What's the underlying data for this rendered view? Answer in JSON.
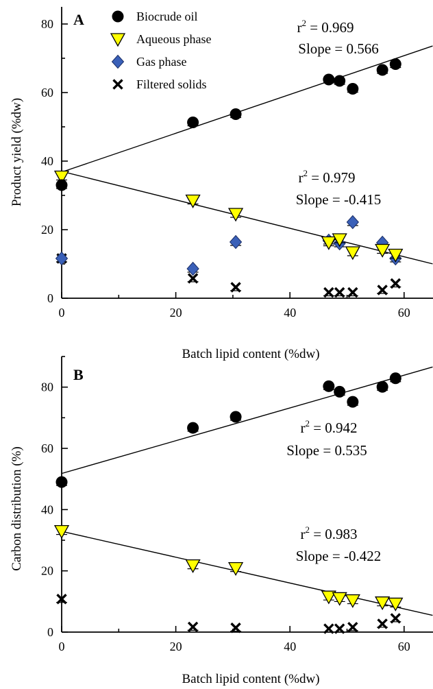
{
  "colors": {
    "biocrude": "#000000",
    "aqueous": "#ffff00",
    "gas": "#3a60b8",
    "solids": "#000000",
    "axis": "#000000"
  },
  "legend": {
    "items": [
      {
        "key": "biocrude",
        "label": "Biocrude oil",
        "marker": "filled-circle"
      },
      {
        "key": "aqueous",
        "label": "Aqueous phase",
        "marker": "down-triangle"
      },
      {
        "key": "gas",
        "label": "Gas phase",
        "marker": "diamond"
      },
      {
        "key": "solids",
        "label": "Filtered solids",
        "marker": "x-cross"
      }
    ]
  },
  "chart_data": [
    {
      "panel": "A",
      "type": "scatter",
      "xlabel": "Batch lipid content (%dw)",
      "ylabel": "Product yield (%dw)",
      "xlim": [
        0,
        65
      ],
      "ylim": [
        0,
        85
      ],
      "xticks": [
        0,
        20,
        40,
        60
      ],
      "yticks": [
        0,
        20,
        40,
        60,
        80
      ],
      "legend_position": "top-left",
      "series": [
        {
          "name": "Biocrude oil",
          "key": "biocrude",
          "x": [
            0,
            23,
            30.5,
            46.8,
            48.7,
            51,
            56.2,
            58.5
          ],
          "y": [
            33,
            51.3,
            53.7,
            63.8,
            63.4,
            61.1,
            66.6,
            68.3
          ]
        },
        {
          "name": "Aqueous phase",
          "key": "aqueous",
          "x": [
            0,
            23,
            30.5,
            46.8,
            48.7,
            51,
            56.2,
            58.5
          ],
          "y": [
            35.5,
            28.5,
            24.6,
            16.3,
            17.2,
            13.4,
            14.1,
            12.7
          ]
        },
        {
          "name": "Gas phase",
          "key": "gas",
          "x": [
            0,
            23,
            30.5,
            46.8,
            48.7,
            51,
            56.2,
            58.5
          ],
          "y": [
            11.6,
            8.6,
            16.4,
            16.8,
            16,
            22.2,
            16.2,
            11.6
          ]
        },
        {
          "name": "Filtered solids",
          "key": "solids",
          "x": [
            0,
            23,
            30.5,
            46.8,
            48.7,
            51,
            56.2,
            58.5
          ],
          "y": [
            11.6,
            5.8,
            3.2,
            1.7,
            1.7,
            1.7,
            2.4,
            4.3
          ]
        }
      ],
      "fits": [
        {
          "series": "biocrude",
          "intercept": 36.8,
          "slope": 0.566,
          "r2_label": "0.969",
          "slope_label": "Slope = 0.566"
        },
        {
          "series": "aqueous",
          "intercept": 37.0,
          "slope": -0.415,
          "r2_label": "0.979",
          "slope_label": "Slope = -0.415"
        }
      ]
    },
    {
      "panel": "B",
      "type": "scatter",
      "xlabel": "Batch lipid content (%dw)",
      "ylabel": "Carbon distribution (%)",
      "xlim": [
        0,
        65
      ],
      "ylim": [
        0,
        90
      ],
      "xticks": [
        0,
        20,
        40,
        60
      ],
      "yticks": [
        0,
        20,
        40,
        60,
        80
      ],
      "series": [
        {
          "name": "Biocrude oil",
          "key": "biocrude",
          "x": [
            0,
            23,
            30.5,
            46.8,
            48.7,
            51,
            56.2,
            58.5
          ],
          "y": [
            49,
            66.7,
            70.3,
            80.3,
            78.5,
            75.2,
            80.1,
            82.9
          ]
        },
        {
          "name": "Aqueous phase",
          "key": "aqueous",
          "x": [
            0,
            23,
            30.5,
            46.8,
            48.7,
            51,
            56.2,
            58.5
          ],
          "y": [
            33,
            21.8,
            20.9,
            11.6,
            11.1,
            10.4,
            9.7,
            9.3
          ]
        },
        {
          "name": "Filtered solids",
          "key": "solids",
          "x": [
            0,
            23,
            30.5,
            46.8,
            48.7,
            51,
            56.2,
            58.5
          ],
          "y": [
            10.8,
            1.7,
            1.4,
            1.1,
            1.1,
            1.6,
            2.7,
            4.5
          ]
        }
      ],
      "fits": [
        {
          "series": "biocrude",
          "intercept": 51.8,
          "slope": 0.535,
          "r2_label": "0.942",
          "slope_label": "Slope = 0.535"
        },
        {
          "series": "aqueous",
          "intercept": 32.9,
          "slope": -0.422,
          "r2_label": "0.983",
          "slope_label": "Slope = -0.422"
        }
      ]
    }
  ]
}
